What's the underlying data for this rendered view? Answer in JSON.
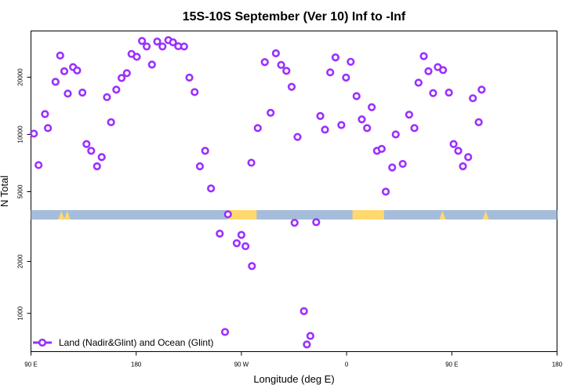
{
  "chart_data": {
    "type": "scatter",
    "title": "15S-10S September (Ver 10)   Inf to -Inf",
    "xlabel": "Longitude (deg E)",
    "ylabel": "N Total",
    "x_scale": "longitude, continuous from 90 E eastward through 180, 90 W, 0, 90 E to 180 (range 90 to 540 deg E)",
    "xlim": [
      90,
      540
    ],
    "x_ticks": [
      {
        "value": 90,
        "label": "90 E"
      },
      {
        "value": 180,
        "label": "180"
      },
      {
        "value": 270,
        "label": "90 W"
      },
      {
        "value": 360,
        "label": "0"
      },
      {
        "value": 450,
        "label": "90 E"
      },
      {
        "value": 540,
        "label": "180"
      }
    ],
    "y_scale": "log, broken axis: upper panel 4000-35000, lower panel 600-3500",
    "upper_ylim": [
      4000,
      35000
    ],
    "lower_ylim": [
      600,
      3500
    ],
    "upper_y_ticks": [
      {
        "value": 5000,
        "label": "5000"
      },
      {
        "value": 10000,
        "label": "10000"
      },
      {
        "value": 20000,
        "label": "20000"
      }
    ],
    "lower_y_ticks": [
      {
        "value": 1000,
        "label": "1000"
      },
      {
        "value": 2000,
        "label": "2000"
      }
    ],
    "grid": false,
    "legend": {
      "placement": "bottom-left",
      "entries": [
        "Land (Nadir&Glint) and Ocean (Glint)"
      ]
    },
    "colors": {
      "series": "#9b30ff",
      "ocean": "#a5bddb",
      "land": "#ffd86e"
    },
    "series": [
      {
        "name": "Land (Nadir&Glint) and Ocean (Glint)",
        "upper_points": [
          [
            92.5,
            10100
          ],
          [
            96.5,
            6900
          ],
          [
            102,
            12800
          ],
          [
            104.5,
            10800
          ],
          [
            111,
            18900
          ],
          [
            115,
            26000
          ],
          [
            118.5,
            21500
          ],
          [
            121.5,
            16400
          ],
          [
            126,
            22600
          ],
          [
            129.5,
            21700
          ],
          [
            134,
            16600
          ],
          [
            137.5,
            8900
          ],
          [
            141.5,
            8200
          ],
          [
            146.5,
            6800
          ],
          [
            150.5,
            7600
          ],
          [
            155,
            15700
          ],
          [
            158.5,
            11600
          ],
          [
            163,
            17200
          ],
          [
            167.5,
            19800
          ],
          [
            172,
            21000
          ],
          [
            176,
            26500
          ],
          [
            180.5,
            25600
          ],
          [
            185,
            31000
          ],
          [
            189,
            29000
          ],
          [
            193.5,
            23300
          ],
          [
            198,
            30800
          ],
          [
            202.5,
            29000
          ],
          [
            207.5,
            31300
          ],
          [
            211.5,
            30500
          ],
          [
            216,
            29100
          ],
          [
            221,
            29000
          ],
          [
            225.5,
            19900
          ],
          [
            230,
            16700
          ],
          [
            234.5,
            6800
          ],
          [
            239,
            8200
          ],
          [
            244,
            5200
          ],
          [
            258.5,
            3800
          ],
          [
            278.5,
            7100
          ],
          [
            284,
            10800
          ],
          [
            290,
            24000
          ],
          [
            295,
            13000
          ],
          [
            299.5,
            26700
          ],
          [
            304,
            23200
          ],
          [
            308.5,
            21600
          ],
          [
            313,
            17800
          ],
          [
            318,
            9700
          ],
          [
            337.5,
            12500
          ],
          [
            341.5,
            10600
          ],
          [
            346,
            21200
          ],
          [
            350.5,
            25400
          ],
          [
            355.5,
            11200
          ],
          [
            359.5,
            19900
          ],
          [
            363.5,
            24100
          ],
          [
            368.5,
            15900
          ],
          [
            373,
            12000
          ],
          [
            377.5,
            10800
          ],
          [
            381.5,
            13900
          ],
          [
            386,
            8200
          ],
          [
            390,
            8400
          ],
          [
            393.5,
            5000
          ],
          [
            399,
            6700
          ],
          [
            402,
            10000
          ],
          [
            408,
            7000
          ],
          [
            413.5,
            12700
          ],
          [
            418,
            10800
          ],
          [
            421.5,
            18700
          ],
          [
            426,
            25800
          ],
          [
            430,
            21500
          ],
          [
            434,
            16500
          ],
          [
            438,
            22600
          ],
          [
            442.5,
            21800
          ],
          [
            447.5,
            16600
          ],
          [
            451.5,
            8900
          ],
          [
            455.5,
            8200
          ],
          [
            459.5,
            6800
          ],
          [
            464,
            7600
          ],
          [
            468,
            15500
          ],
          [
            473,
            11600
          ],
          [
            475.5,
            17200
          ]
        ],
        "lower_points": [
          [
            251.5,
            2900
          ],
          [
            256,
            780
          ],
          [
            266,
            2550
          ],
          [
            270,
            2850
          ],
          [
            273.5,
            2450
          ],
          [
            279,
            1880
          ],
          [
            315.5,
            3350
          ],
          [
            323.5,
            1030
          ],
          [
            326,
            660
          ],
          [
            329,
            740
          ],
          [
            334,
            3380
          ]
        ]
      }
    ]
  }
}
